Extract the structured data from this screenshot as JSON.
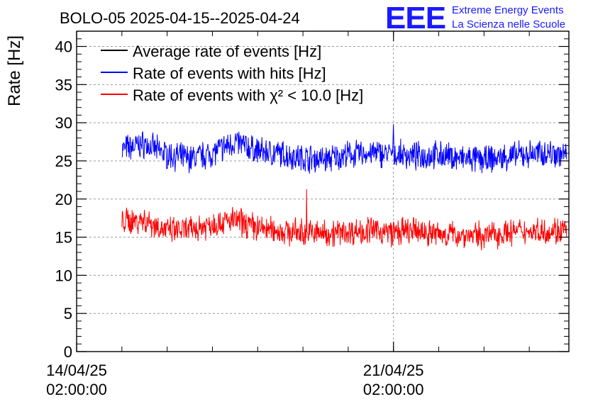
{
  "chart_data": {
    "type": "line",
    "title": "BOLO-05 2025-04-15--2025-04-24",
    "ylabel": "Rate [Hz]",
    "xlabel": "",
    "ylim": [
      0,
      42
    ],
    "xlim": [
      "2025-04-14T02:00:00",
      "2025-04-24T23:00:00"
    ],
    "y_ticks": [
      "0",
      "5",
      "10",
      "15",
      "20",
      "25",
      "30",
      "35",
      "40"
    ],
    "x_ticks": [
      {
        "date": "2025-04-14T02:00:00",
        "line1": "14/04/25",
        "line2": "02:00:00"
      },
      {
        "date": "2025-04-21T02:00:00",
        "line1": "21/04/25",
        "line2": "02:00:00"
      }
    ],
    "grid": true,
    "legend_position": "top-left",
    "series": [
      {
        "name": "Average rate of events [Hz]",
        "color": "#000000",
        "x": [],
        "values": []
      },
      {
        "name": "Rate of events with hits [Hz]",
        "color": "#0000ff",
        "x": [
          "2025-04-15T02:00",
          "2025-04-15T14:00",
          "2025-04-16T02:00",
          "2025-04-16T14:00",
          "2025-04-17T02:00",
          "2025-04-17T14:00",
          "2025-04-18T02:00",
          "2025-04-18T14:00",
          "2025-04-19T02:00",
          "2025-04-19T14:00",
          "2025-04-20T02:00",
          "2025-04-20T14:00",
          "2025-04-21T02:00",
          "2025-04-21T14:00",
          "2025-04-22T02:00",
          "2025-04-22T14:00",
          "2025-04-23T02:00",
          "2025-04-23T14:00",
          "2025-04-24T02:00",
          "2025-04-24T14:00",
          "2025-04-24T22:00"
        ],
        "values": [
          26.5,
          27.2,
          25.8,
          25.3,
          26.0,
          27.5,
          26.3,
          25.9,
          25.4,
          25.2,
          25.8,
          26.0,
          25.9,
          25.6,
          25.8,
          25.3,
          25.1,
          25.5,
          25.9,
          26.1,
          25.7
        ]
      },
      {
        "name": "Rate of events with χ² < 10.0 [Hz]",
        "color": "#ff0000",
        "x": [
          "2025-04-15T02:00",
          "2025-04-15T14:00",
          "2025-04-16T02:00",
          "2025-04-16T14:00",
          "2025-04-17T02:00",
          "2025-04-17T14:00",
          "2025-04-18T02:00",
          "2025-04-18T14:00",
          "2025-04-19T02:00",
          "2025-04-19T14:00",
          "2025-04-20T02:00",
          "2025-04-20T14:00",
          "2025-04-21T02:00",
          "2025-04-21T14:00",
          "2025-04-22T02:00",
          "2025-04-22T14:00",
          "2025-04-23T02:00",
          "2025-04-23T14:00",
          "2025-04-24T02:00",
          "2025-04-24T14:00",
          "2025-04-24T22:00"
        ],
        "values": [
          17.0,
          17.3,
          15.8,
          15.9,
          16.8,
          17.2,
          16.2,
          15.8,
          15.6,
          15.5,
          15.7,
          15.9,
          15.6,
          15.8,
          15.4,
          15.3,
          15.2,
          15.6,
          15.8,
          15.9,
          15.8
        ]
      }
    ],
    "annotations": [
      {
        "series": "Rate of events with hits [Hz]",
        "x": "2025-04-21T02:00",
        "y": 29.8,
        "note": "spike"
      },
      {
        "series": "Rate of events with χ² < 10.0 [Hz]",
        "x": "2025-04-19T04:00",
        "y": 21.3,
        "note": "spike"
      }
    ]
  },
  "logo": {
    "mark": "EEE",
    "line1": "Extreme Energy Events",
    "line2": "La Scienza nelle Scuole",
    "color": "#1a1aff"
  }
}
